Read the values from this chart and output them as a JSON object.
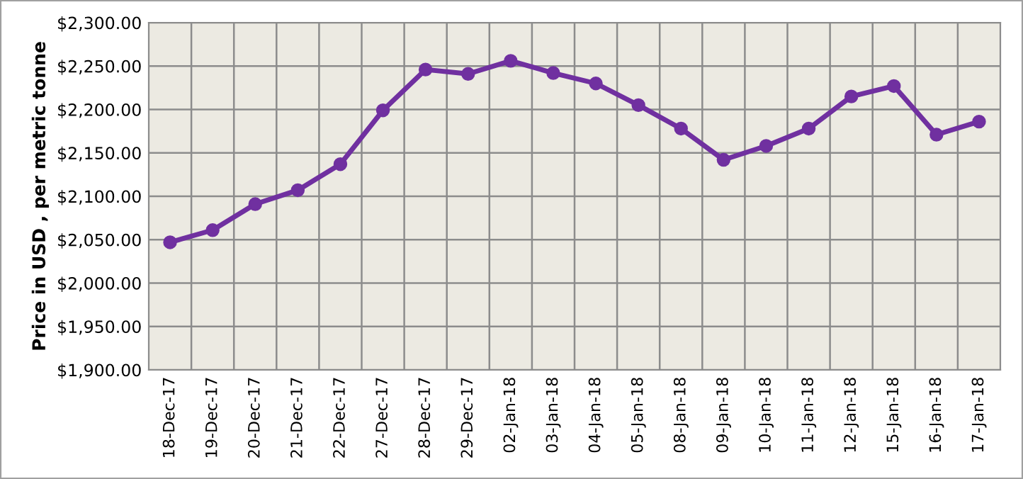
{
  "chart_data": {
    "type": "line",
    "ylabel": "Price in USD , per metric tonne",
    "categories": [
      "18-Dec-17",
      "19-Dec-17",
      "20-Dec-17",
      "21-Dec-17",
      "22-Dec-17",
      "27-Dec-17",
      "28-Dec-17",
      "29-Dec-17",
      "02-Jan-18",
      "03-Jan-18",
      "04-Jan-18",
      "05-Jan-18",
      "08-Jan-18",
      "09-Jan-18",
      "10-Jan-18",
      "11-Jan-18",
      "12-Jan-18",
      "15-Jan-18",
      "16-Jan-18",
      "17-Jan-18"
    ],
    "series": [
      {
        "color": "#7030a0",
        "values": [
          2047,
          2061,
          2091,
          2107,
          2137,
          2199,
          2246,
          2241,
          2256,
          2242,
          2230,
          2205,
          2178,
          2142,
          2158,
          2178,
          2215,
          2227,
          2171,
          2186
        ]
      }
    ],
    "ylim": [
      1900,
      2300
    ],
    "yticks": [
      {
        "value": 1900,
        "label": "$1,900.00"
      },
      {
        "value": 1950,
        "label": "$1,950.00"
      },
      {
        "value": 2000,
        "label": "$2,000.00"
      },
      {
        "value": 2050,
        "label": "$2,050.00"
      },
      {
        "value": 2100,
        "label": "$2,100.00"
      },
      {
        "value": 2150,
        "label": "$2,150.00"
      },
      {
        "value": 2200,
        "label": "$2,200.00"
      },
      {
        "value": 2250,
        "label": "$2,250.00"
      },
      {
        "value": 2300,
        "label": "$2,300.00"
      }
    ],
    "grid": true,
    "marker": "circle",
    "line_style": "solid",
    "legend": false
  }
}
